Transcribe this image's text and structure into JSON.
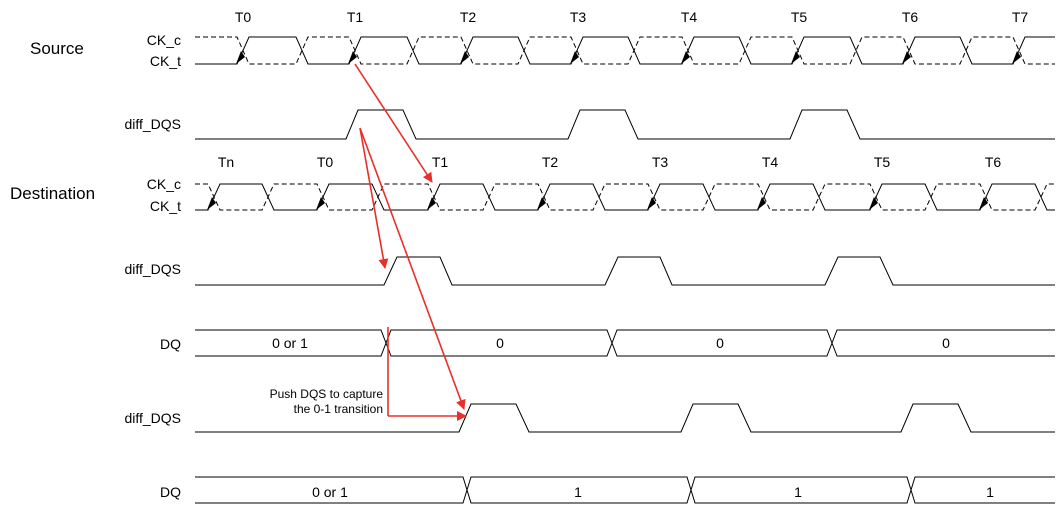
{
  "sections": {
    "source": "Source",
    "destination": "Destination"
  },
  "signals": {
    "ck_c": "CK_c",
    "ck_t": "CK_t",
    "diff_dqs": "diff_DQS",
    "dq": "DQ"
  },
  "source_ticks": [
    "T0",
    "T1",
    "T2",
    "T3",
    "T4",
    "T5",
    "T6",
    "T7"
  ],
  "dest_ticks": [
    "Tn",
    "T0",
    "T1",
    "T2",
    "T3",
    "T4",
    "T5",
    "T6"
  ],
  "dq1": {
    "first": "0 or 1",
    "rest": [
      "0",
      "0",
      "0"
    ]
  },
  "dq2": {
    "first": "0 or 1",
    "rest": [
      "1",
      "1",
      "1"
    ]
  },
  "annotation": [
    "Push DQS to capture",
    "the 0-1 transition"
  ],
  "colors": {
    "arrow": "#e8302a",
    "trace": "#000000"
  }
}
